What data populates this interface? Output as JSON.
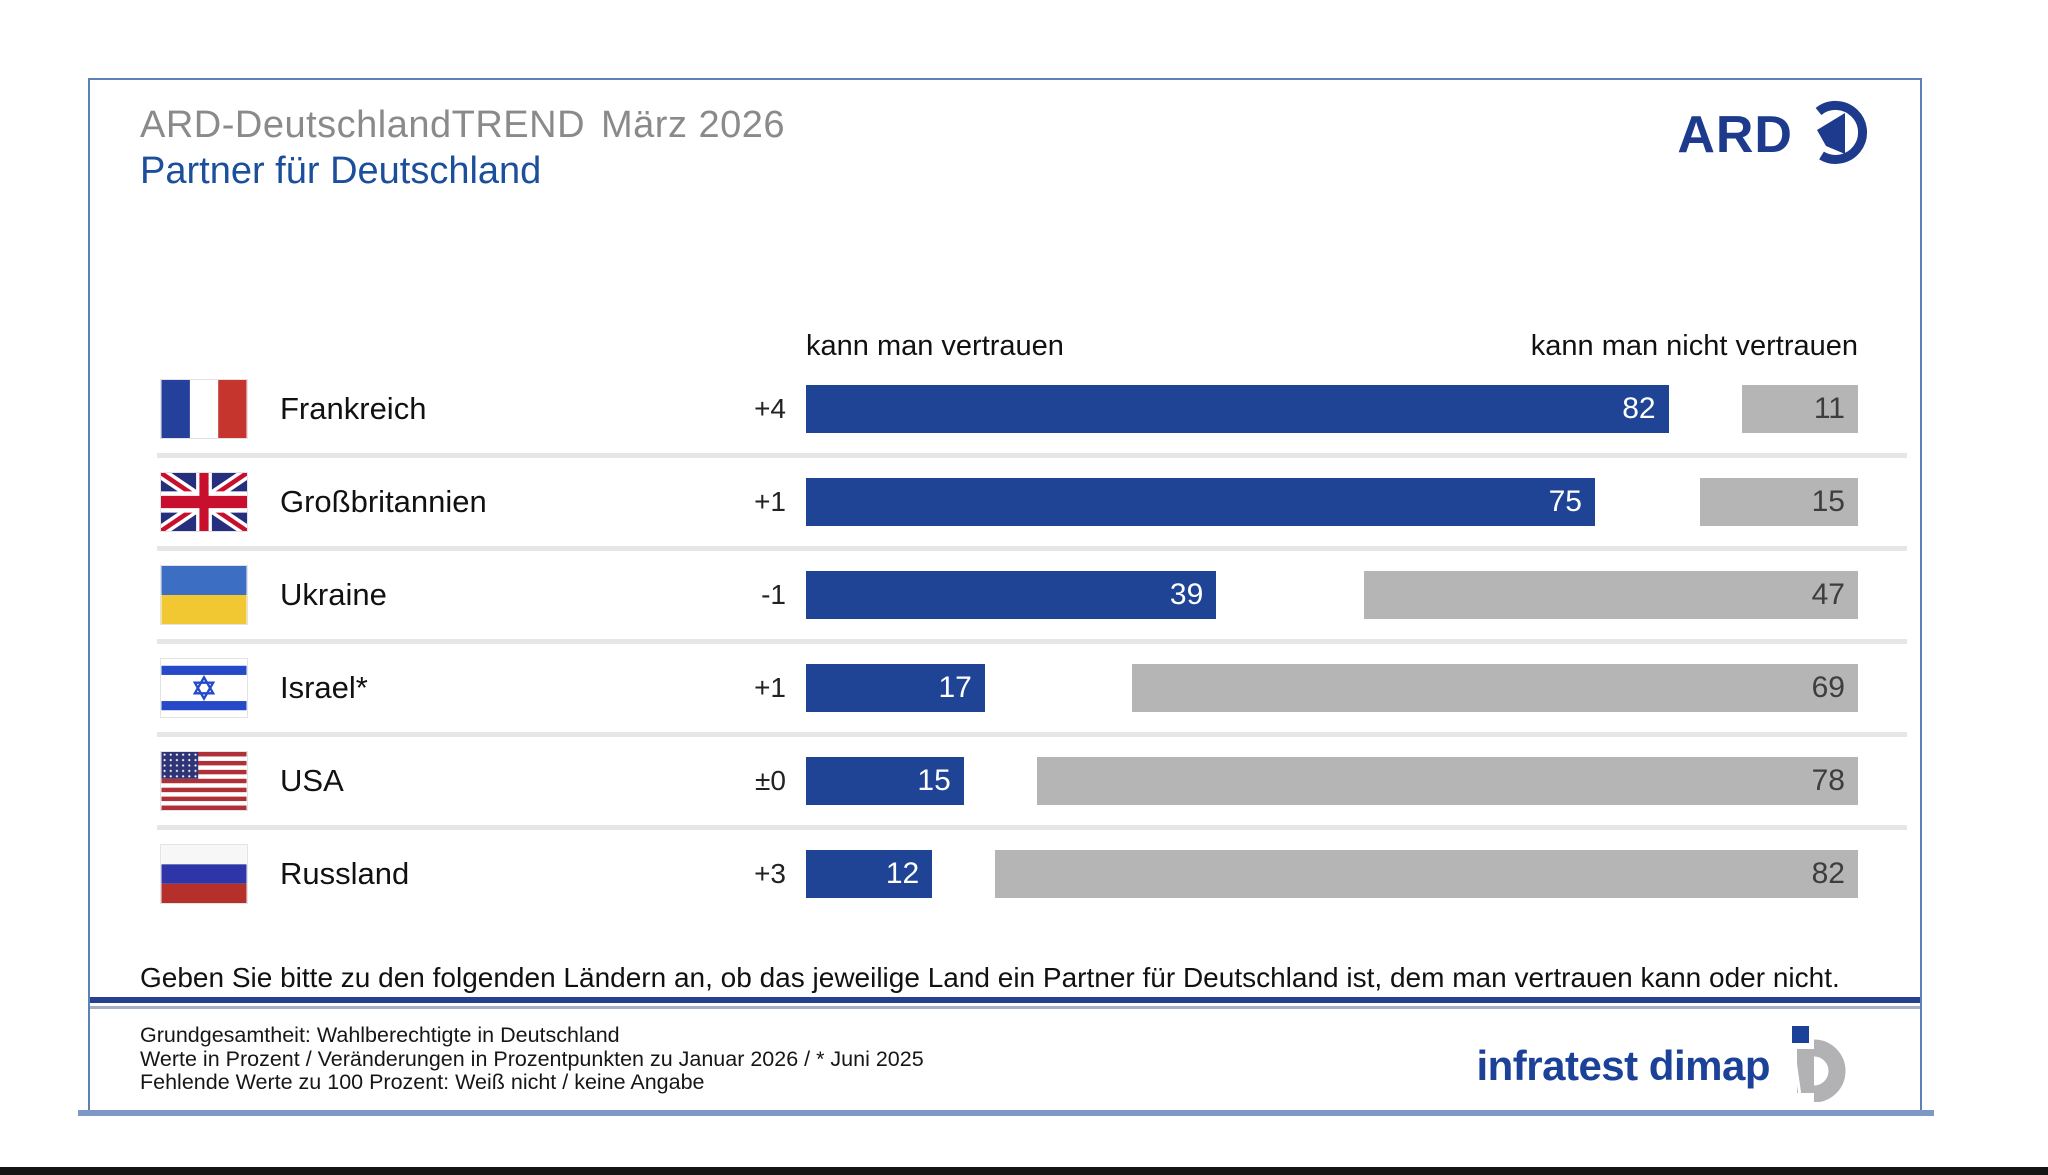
{
  "header": {
    "kicker_brand": "ARD-DeutschlandTREND",
    "kicker_edition": "März 2026",
    "title": "Partner für Deutschland",
    "ard_logo_text": "ARD"
  },
  "chart": {
    "col_left_header": "kann man vertrauen",
    "col_right_header": "kann man nicht vertrauen"
  },
  "chart_data": {
    "type": "bar",
    "orientation": "horizontal",
    "title": "Partner für Deutschland",
    "context": "ARD-DeutschlandTREND März 2026",
    "categories": [
      "Frankreich",
      "Großbritannien",
      "Ukraine",
      "Israel*",
      "USA",
      "Russland"
    ],
    "flags": [
      "france",
      "uk",
      "ukraine",
      "israel",
      "usa",
      "russia"
    ],
    "series": [
      {
        "name": "kann man vertrauen",
        "color": "#1F4496",
        "values": [
          82,
          75,
          39,
          17,
          15,
          12
        ],
        "changes": [
          "+4",
          "+1",
          "-1",
          "+1",
          "±0",
          "+3"
        ]
      },
      {
        "name": "kann man nicht vertrauen",
        "color": "#B5B5B5",
        "values": [
          11,
          15,
          47,
          69,
          78,
          82
        ]
      }
    ],
    "value_axis_range": [
      0,
      100
    ],
    "unit": "Prozent",
    "legend_position": "column-headers"
  },
  "question": "Geben Sie bitte zu den folgenden Ländern an, ob das jeweilige Land ein Partner für Deutschland ist, dem man vertrauen kann oder nicht.",
  "footnotes": [
    "Grundgesamtheit: Wahlberechtigte in Deutschland",
    "Werte in Prozent / Veränderungen in Prozentpunkten zu Januar 2026 / * Juni 2025",
    "Fehlende Werte zu 100 Prozent: Weiß nicht / keine Angabe"
  ],
  "branding": {
    "agency": "infratest dimap"
  }
}
